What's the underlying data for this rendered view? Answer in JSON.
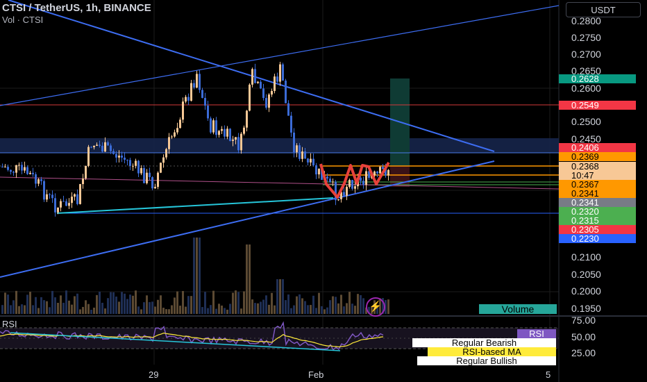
{
  "header": {
    "title": "CTSI / TetherUS, 1h, BINANCE",
    "volume_label": "Vol · CTSI",
    "currency_button": "USDT"
  },
  "price_axis": {
    "labels": [
      "0.2800",
      "0.2750",
      "0.2700",
      "0.2650",
      "0.2600",
      "0.2500",
      "0.2450",
      "0.2100",
      "0.2050",
      "0.2000",
      "0.1950"
    ]
  },
  "price_badges": [
    {
      "text": "0.2628",
      "bg": "#089981",
      "fg": "#ffffff"
    },
    {
      "text": "0.2549",
      "bg": "#f23645",
      "fg": "#ffffff"
    },
    {
      "text": "0.2406",
      "bg": "#f23645",
      "fg": "#ffffff"
    },
    {
      "text": "0.2369",
      "bg": "#ff9800",
      "fg": "#000000"
    },
    {
      "text": "0.2368",
      "bg": "#f7c896",
      "fg": "#000000"
    },
    {
      "text": "10:47",
      "bg": "#f7c896",
      "fg": "#000000"
    },
    {
      "text": "0.2367",
      "bg": "#ff9800",
      "fg": "#000000"
    },
    {
      "text": "0.2341",
      "bg": "#ff9800",
      "fg": "#000000"
    },
    {
      "text": "0.2341",
      "bg": "#787b86",
      "fg": "#ffffff"
    },
    {
      "text": "0.2320",
      "bg": "#4caf50",
      "fg": "#ffffff"
    },
    {
      "text": "0.2315",
      "bg": "#4caf50",
      "fg": "#ffffff"
    },
    {
      "text": "0.2305",
      "bg": "#f23645",
      "fg": "#ffffff"
    },
    {
      "text": "0.2230",
      "bg": "#2962ff",
      "fg": "#ffffff"
    }
  ],
  "volume_tag": "Volume",
  "rsi": {
    "label": "RSI",
    "axis": [
      "75.00",
      "50.00",
      "25.00"
    ],
    "tags": [
      {
        "text": "RSI",
        "bg": "#7e57c2",
        "fg": "#ffffff"
      },
      {
        "text": "Regular Bearish",
        "bg": "#ffffff",
        "fg": "#000000"
      },
      {
        "text": "RSI-based MA",
        "bg": "#ffeb3b",
        "fg": "#000000"
      },
      {
        "text": "Regular Bullish",
        "bg": "#ffffff",
        "fg": "#000000"
      }
    ]
  },
  "time_axis": [
    "29",
    "Feb",
    "5"
  ],
  "icons": {
    "alert": "lightning-icon"
  },
  "colors": {
    "up": "#f7c896",
    "down": "#3b6bd6",
    "trendline": "#3d6df2",
    "support": "#26c6da",
    "pattern": "#f23645"
  }
}
